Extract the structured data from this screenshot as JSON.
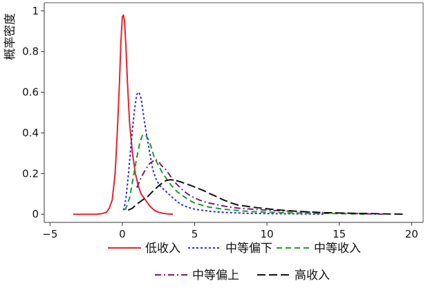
{
  "chart_data": {
    "type": "line",
    "title": "",
    "xlabel": "",
    "ylabel": "概率密度",
    "xlim": [
      -5.4,
      20.8
    ],
    "ylim": [
      -0.04,
      1.04
    ],
    "xticks": [
      -5,
      0,
      5,
      10,
      15,
      20
    ],
    "xtick_labels": [
      "−5",
      "0",
      "5",
      "10",
      "15",
      "20"
    ],
    "yticks": [
      0,
      0.2,
      0.4,
      0.6,
      0.8,
      1
    ],
    "ytick_labels": [
      "0",
      "0.2",
      "0.4",
      "0.6",
      "0.8",
      "1"
    ],
    "grid": false,
    "legend_position": "bottom",
    "series": [
      {
        "name": "低收入",
        "color": "#e8202a",
        "dash": "solid",
        "x": [
          -3.4,
          -2.5,
          -1.8,
          -1.4,
          -1.1,
          -0.9,
          -0.7,
          -0.5,
          -0.35,
          -0.2,
          -0.1,
          0.0,
          0.08,
          0.15,
          0.25,
          0.35,
          0.5,
          0.7,
          0.9,
          1.1,
          1.3,
          1.6,
          1.9,
          2.2,
          2.5,
          2.8,
          3.1,
          3.5
        ],
        "y": [
          0.0,
          0.0,
          0.0,
          0.003,
          0.01,
          0.03,
          0.07,
          0.2,
          0.4,
          0.65,
          0.85,
          0.97,
          0.98,
          0.95,
          0.82,
          0.65,
          0.45,
          0.3,
          0.2,
          0.14,
          0.1,
          0.07,
          0.04,
          0.02,
          0.01,
          0.005,
          0.002,
          0.0
        ]
      },
      {
        "name": "中等偏下",
        "color": "#2a2ae8",
        "dash": "3,3",
        "x": [
          0.1,
          0.25,
          0.45,
          0.65,
          0.85,
          1.0,
          1.15,
          1.3,
          1.5,
          1.7,
          1.9,
          2.1,
          2.35,
          2.6,
          2.9,
          3.2,
          3.5,
          4.0,
          4.5,
          5.0,
          5.5,
          6.0,
          6.8,
          7.5,
          8.5,
          10.0,
          12.0,
          14.0
        ],
        "y": [
          0.02,
          0.08,
          0.22,
          0.38,
          0.52,
          0.59,
          0.6,
          0.57,
          0.47,
          0.38,
          0.3,
          0.22,
          0.17,
          0.14,
          0.12,
          0.1,
          0.08,
          0.05,
          0.035,
          0.025,
          0.02,
          0.015,
          0.01,
          0.008,
          0.005,
          0.003,
          0.002,
          0.0
        ]
      },
      {
        "name": "中等收入",
        "color": "#1f9a2a",
        "dash": "8,5",
        "x": [
          0.2,
          0.5,
          0.8,
          1.0,
          1.2,
          1.4,
          1.6,
          1.8,
          2.0,
          2.2,
          2.5,
          2.8,
          3.1,
          3.4,
          3.8,
          4.2,
          4.6,
          5.0,
          5.5,
          6.0,
          7.0,
          8.0,
          9.0,
          10.0,
          11.0,
          13.0,
          15.0,
          17.0
        ],
        "y": [
          0.02,
          0.08,
          0.2,
          0.28,
          0.35,
          0.39,
          0.39,
          0.37,
          0.33,
          0.28,
          0.24,
          0.2,
          0.17,
          0.14,
          0.11,
          0.09,
          0.07,
          0.055,
          0.045,
          0.035,
          0.025,
          0.018,
          0.013,
          0.01,
          0.008,
          0.005,
          0.003,
          0.0
        ]
      },
      {
        "name": "中等偏上",
        "color": "#7a1a7a",
        "dash": "9,4,2,4",
        "x": [
          1.0,
          1.3,
          1.6,
          1.9,
          2.1,
          2.3,
          2.5,
          2.7,
          3.0,
          3.3,
          3.6,
          4.0,
          4.5,
          5.0,
          5.5,
          6.0,
          7.0,
          8.0,
          9.0,
          10.0,
          11.0,
          12.0,
          13.0,
          14.0,
          15.0,
          16.0,
          17.0,
          18.0
        ],
        "y": [
          0.13,
          0.18,
          0.22,
          0.25,
          0.26,
          0.27,
          0.26,
          0.24,
          0.22,
          0.19,
          0.16,
          0.13,
          0.1,
          0.08,
          0.065,
          0.055,
          0.04,
          0.03,
          0.025,
          0.02,
          0.017,
          0.014,
          0.011,
          0.008,
          0.006,
          0.004,
          0.002,
          0.0
        ]
      },
      {
        "name": "高收入",
        "color": "#111111",
        "dash": "12,5",
        "x": [
          0.4,
          0.7,
          1.0,
          1.4,
          1.8,
          2.2,
          2.6,
          3.0,
          3.3,
          3.6,
          4.0,
          4.4,
          4.8,
          5.2,
          5.6,
          6.0,
          6.5,
          7.0,
          7.5,
          8.0,
          9.0,
          10.0,
          11.0,
          12.0,
          13.0,
          14.0,
          16.0,
          18.0,
          19.5
        ],
        "y": [
          0.02,
          0.03,
          0.05,
          0.07,
          0.09,
          0.12,
          0.145,
          0.165,
          0.17,
          0.168,
          0.16,
          0.15,
          0.14,
          0.128,
          0.117,
          0.103,
          0.087,
          0.07,
          0.056,
          0.045,
          0.035,
          0.027,
          0.02,
          0.015,
          0.011,
          0.008,
          0.005,
          0.002,
          0.0
        ]
      }
    ]
  }
}
